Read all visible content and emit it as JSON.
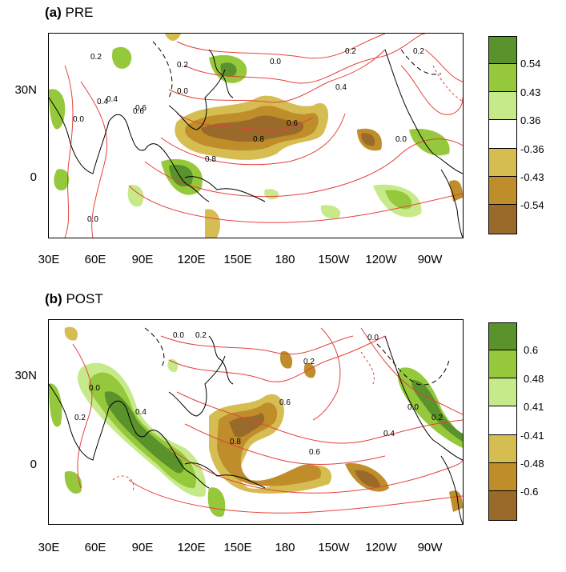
{
  "colors": {
    "dark_green": "#5a922b",
    "mid_green": "#96c83c",
    "light_green": "#c6ea8a",
    "white": "#ffffff",
    "light_brown": "#d6bd52",
    "mid_brown": "#bf8d2a",
    "dark_brown": "#9a6a2a",
    "contour": "#e4423c",
    "coast": "#000000"
  },
  "x_ticks": [
    "30E",
    "60E",
    "90E",
    "120E",
    "150E",
    "180",
    "150W",
    "120W",
    "90W"
  ],
  "y_ticks": [
    "30N",
    "0"
  ],
  "panels": [
    {
      "label": "(a)",
      "name": "PRE",
      "colorbar_labels": [
        "0.54",
        "0.43",
        "0.36",
        "-0.36",
        "-0.43",
        "-0.54"
      ],
      "contour_labels": [
        "0.2",
        "0.0",
        "0.2",
        "0.4",
        "0.6",
        "0.8",
        "0.8",
        "0.6",
        "0.4",
        "0.2",
        "0.0",
        "0.0",
        "0.2",
        "0.4",
        "0.0",
        "0.0",
        "0.6"
      ]
    },
    {
      "label": "(b)",
      "name": "POST",
      "colorbar_labels": [
        "0.6",
        "0.48",
        "0.41",
        "-0.41",
        "-0.48",
        "-0.6"
      ],
      "contour_labels": [
        "0.0",
        "0.0",
        "0.2",
        "0.4",
        "0.8",
        "0.6",
        "0.6",
        "0.2",
        "0.0",
        "0.4",
        "0.2",
        "0.0",
        "0.2"
      ]
    }
  ]
}
